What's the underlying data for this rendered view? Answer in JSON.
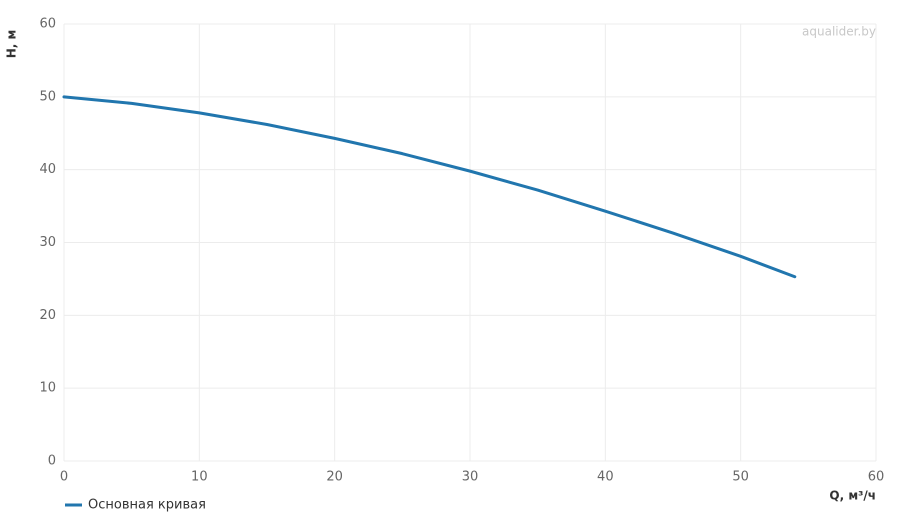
{
  "chart_data": {
    "type": "line",
    "watermark": "aqualider.by",
    "x_label": "Q, м³/ч",
    "y_label": "H, м",
    "x": [
      0,
      5,
      10,
      15,
      20,
      25,
      30,
      35,
      40,
      45,
      50,
      54
    ],
    "series": [
      {
        "name": "Основная кривая",
        "color": "#2176ae",
        "values": [
          50,
          49.1,
          47.8,
          46.2,
          44.3,
          42.2,
          39.8,
          37.2,
          34.3,
          31.3,
          28.1,
          25.3
        ]
      }
    ],
    "xlim": [
      0,
      60
    ],
    "ylim": [
      0,
      60
    ],
    "xticks": [
      0,
      10,
      20,
      30,
      40,
      50,
      60
    ],
    "yticks": [
      0,
      10,
      20,
      30,
      40,
      50,
      60
    ],
    "grid": true
  }
}
